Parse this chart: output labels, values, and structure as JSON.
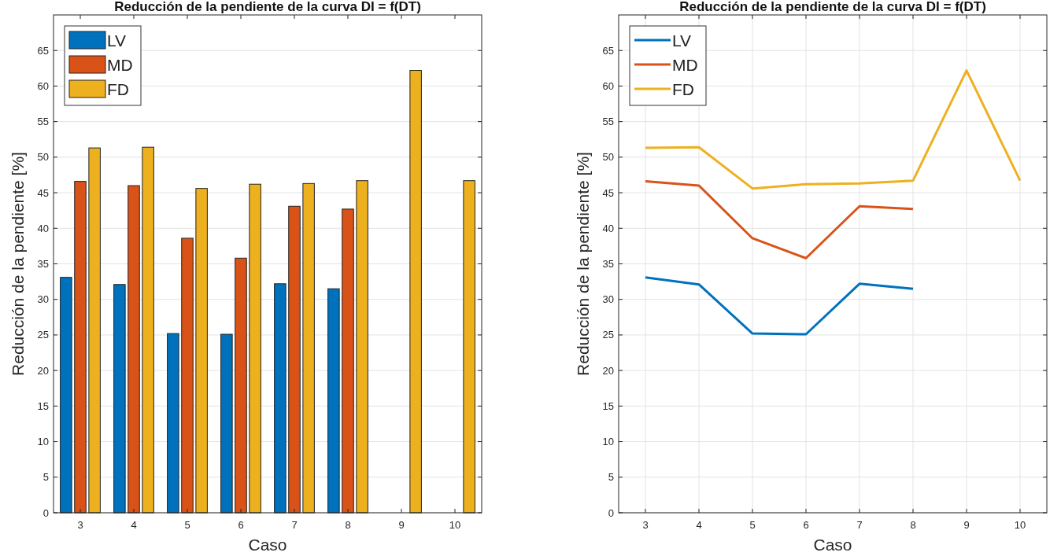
{
  "chart_data": [
    {
      "type": "bar",
      "title": "Reducción de la pendiente de la curva DI = f(DT)",
      "xlabel": "Caso",
      "ylabel": "Reducción de la pendiente [%]",
      "categories": [
        "3",
        "4",
        "5",
        "6",
        "7",
        "8",
        "9",
        "10"
      ],
      "series": [
        {
          "name": "LV",
          "color": "#0072bd",
          "values": [
            33.1,
            32.1,
            25.2,
            25.1,
            32.2,
            31.5,
            null,
            null
          ]
        },
        {
          "name": "MD",
          "color": "#d95319",
          "values": [
            46.6,
            46.0,
            38.6,
            35.8,
            43.1,
            42.7,
            null,
            null
          ]
        },
        {
          "name": "FD",
          "color": "#edb120",
          "values": [
            51.3,
            51.4,
            45.6,
            46.2,
            46.3,
            46.7,
            62.2,
            46.7
          ]
        }
      ],
      "ylim": [
        0,
        70
      ],
      "yticks": [
        0,
        5,
        10,
        15,
        20,
        25,
        30,
        35,
        40,
        45,
        50,
        55,
        60,
        65
      ],
      "grid": "y",
      "legend": "top left"
    },
    {
      "type": "line",
      "title": "Reducción de la pendiente de la curva DI = f(DT)",
      "xlabel": "Caso",
      "ylabel": "Reducción de la pendiente [%]",
      "x": [
        3,
        4,
        5,
        6,
        7,
        8,
        9,
        10
      ],
      "series": [
        {
          "name": "LV",
          "color": "#0072bd",
          "values": [
            33.1,
            32.1,
            25.2,
            25.1,
            32.2,
            31.5,
            null,
            null
          ]
        },
        {
          "name": "MD",
          "color": "#d95319",
          "values": [
            46.6,
            46.0,
            38.6,
            35.8,
            43.1,
            42.7,
            null,
            null
          ]
        },
        {
          "name": "FD",
          "color": "#edb120",
          "values": [
            51.3,
            51.4,
            45.6,
            46.2,
            46.3,
            46.7,
            62.2,
            46.7
          ]
        }
      ],
      "xlim": [
        2.5,
        10.5
      ],
      "xticks": [
        3,
        4,
        5,
        6,
        7,
        8,
        9,
        10
      ],
      "ylim": [
        0,
        70
      ],
      "yticks": [
        0,
        5,
        10,
        15,
        20,
        25,
        30,
        35,
        40,
        45,
        50,
        55,
        60,
        65
      ],
      "grid": true,
      "legend": "top left"
    }
  ]
}
